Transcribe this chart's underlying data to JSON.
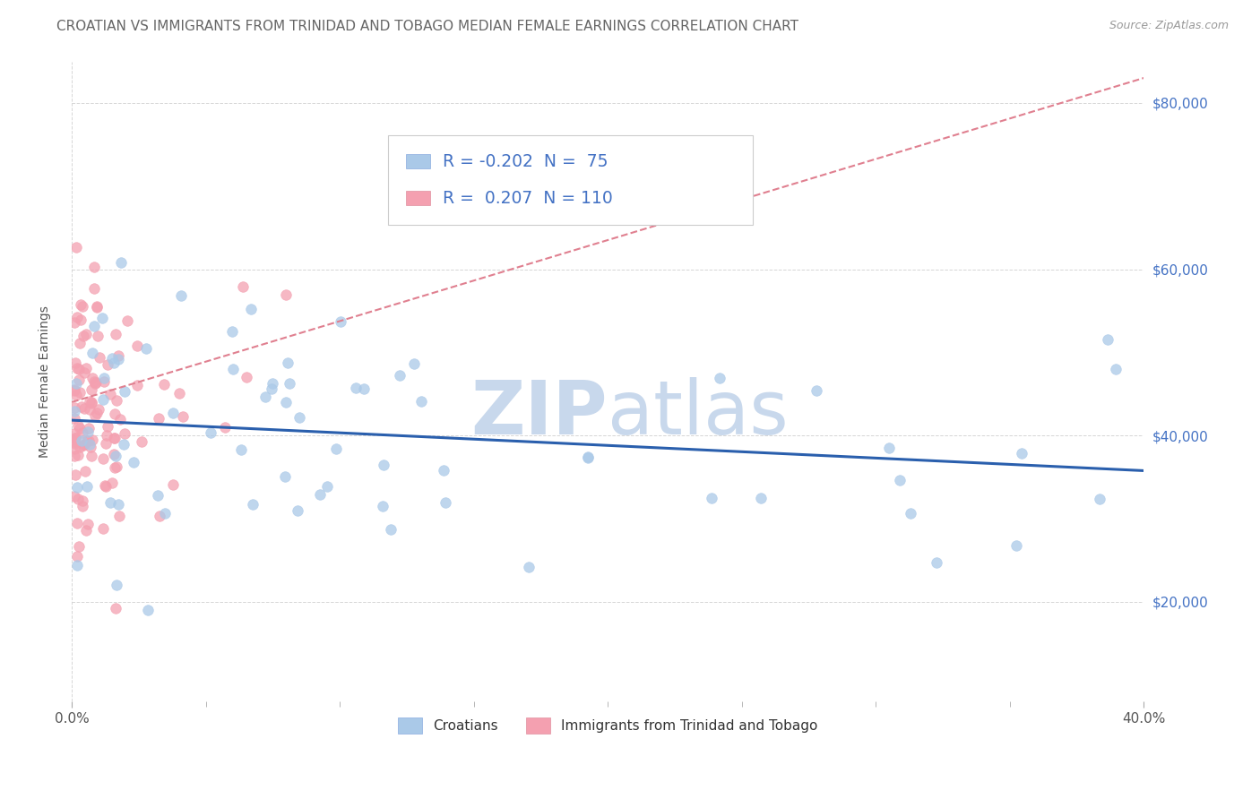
{
  "title": "CROATIAN VS IMMIGRANTS FROM TRINIDAD AND TOBAGO MEDIAN FEMALE EARNINGS CORRELATION CHART",
  "source": "Source: ZipAtlas.com",
  "ylabel": "Median Female Earnings",
  "x_min": 0.0,
  "x_max": 0.4,
  "y_min": 8000,
  "y_max": 85000,
  "yticks": [
    20000,
    40000,
    60000,
    80000
  ],
  "ytick_labels": [
    "$20,000",
    "$40,000",
    "$60,000",
    "$80,000"
  ],
  "xticks": [
    0.0,
    0.4
  ],
  "xtick_labels": [
    "0.0%",
    "40.0%"
  ],
  "series1_label": "Croatians",
  "series1_color": "#aac9e8",
  "series1_line_color": "#2a5fad",
  "series1_R": -0.202,
  "series1_N": 75,
  "series2_label": "Immigrants from Trinidad and Tobago",
  "series2_color": "#f4a0b0",
  "series2_line_color": "#e08090",
  "series2_R": 0.207,
  "series2_N": 110,
  "legend_text_color": "#4472c4",
  "background_color": "#ffffff",
  "grid_color": "#cccccc",
  "watermark_color": "#c8d8ec",
  "title_fontsize": 11,
  "axis_label_fontsize": 10,
  "tick_fontsize": 11
}
